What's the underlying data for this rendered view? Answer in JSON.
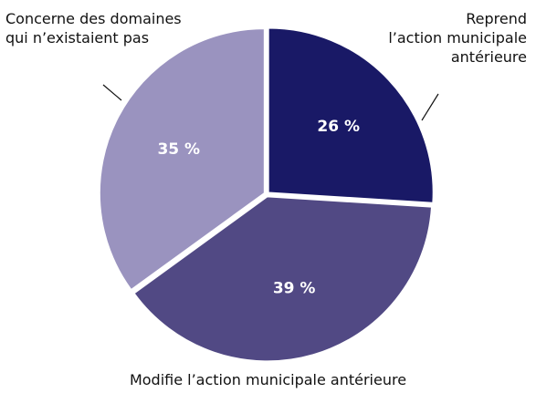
{
  "chart_data": {
    "type": "pie",
    "categories": [
      "Reprend\nl’action municipale\nantérieure",
      "Modifie l’action municipale antérieure",
      "Concerne des domaines\nqui n’existaient pas"
    ],
    "values": [
      26,
      39,
      35
    ],
    "value_labels": [
      "26 %",
      "39 %",
      "35 %"
    ],
    "colors": [
      "#191966",
      "#514984",
      "#9a93bf"
    ]
  }
}
